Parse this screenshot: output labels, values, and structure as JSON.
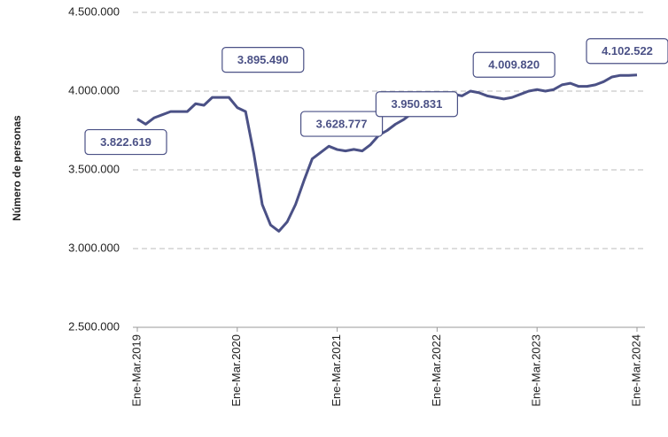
{
  "chart_data": {
    "type": "line",
    "y_label": "Número de personas",
    "categories": [
      "Ene-Mar.2019",
      null,
      null,
      null,
      null,
      null,
      null,
      null,
      null,
      null,
      null,
      null,
      "Ene-Mar.2020",
      null,
      null,
      null,
      null,
      null,
      null,
      null,
      null,
      null,
      null,
      null,
      "Ene-Mar.2021",
      null,
      null,
      null,
      null,
      null,
      null,
      null,
      null,
      null,
      null,
      null,
      "Ene-Mar.2022",
      null,
      null,
      null,
      null,
      null,
      null,
      null,
      null,
      null,
      null,
      null,
      "Ene-Mar.2023",
      null,
      null,
      null,
      null,
      null,
      null,
      null,
      null,
      null,
      null,
      null,
      "Ene-Mar.2024"
    ],
    "series": [
      {
        "color": "#4b5186",
        "values": [
          3822619,
          3790000,
          3830000,
          3850000,
          3870000,
          3870000,
          3870000,
          3920000,
          3910000,
          3960000,
          3960000,
          3960000,
          3895490,
          3870000,
          3600000,
          3280000,
          3150000,
          3110000,
          3170000,
          3280000,
          3430000,
          3570000,
          3610000,
          3650000,
          3628777,
          3620000,
          3630000,
          3620000,
          3660000,
          3720000,
          3750000,
          3790000,
          3820000,
          3860000,
          3890000,
          3880000,
          3950831,
          3970000,
          3980000,
          3970000,
          4000000,
          3990000,
          3970000,
          3960000,
          3950000,
          3960000,
          3980000,
          4000000,
          4009820,
          4000000,
          4010000,
          4040000,
          4050000,
          4030000,
          4030000,
          4040000,
          4060000,
          4090000,
          4100000,
          4100000,
          4102522
        ],
        "value_labels": [
          "3.822.619",
          null,
          null,
          null,
          null,
          null,
          null,
          null,
          null,
          null,
          null,
          null,
          "3.895.490",
          null,
          null,
          null,
          null,
          null,
          null,
          null,
          null,
          null,
          null,
          null,
          "3.628.777",
          null,
          null,
          null,
          null,
          null,
          null,
          null,
          null,
          null,
          null,
          null,
          "3.950.831",
          null,
          null,
          null,
          null,
          null,
          null,
          null,
          null,
          null,
          null,
          null,
          "4.009.820",
          null,
          null,
          null,
          null,
          null,
          null,
          null,
          null,
          null,
          null,
          null,
          "4.102.522"
        ]
      }
    ],
    "ylim": [
      2500000,
      4500000
    ],
    "yticks": [
      {
        "value": 2500000,
        "label": "2.500.000"
      },
      {
        "value": 3000000,
        "label": "3.000.000"
      },
      {
        "value": 3500000,
        "label": "3.500.000"
      },
      {
        "value": 4000000,
        "label": "4.000.000"
      },
      {
        "value": 4500000,
        "label": "4.500.000"
      }
    ],
    "grid": true
  }
}
